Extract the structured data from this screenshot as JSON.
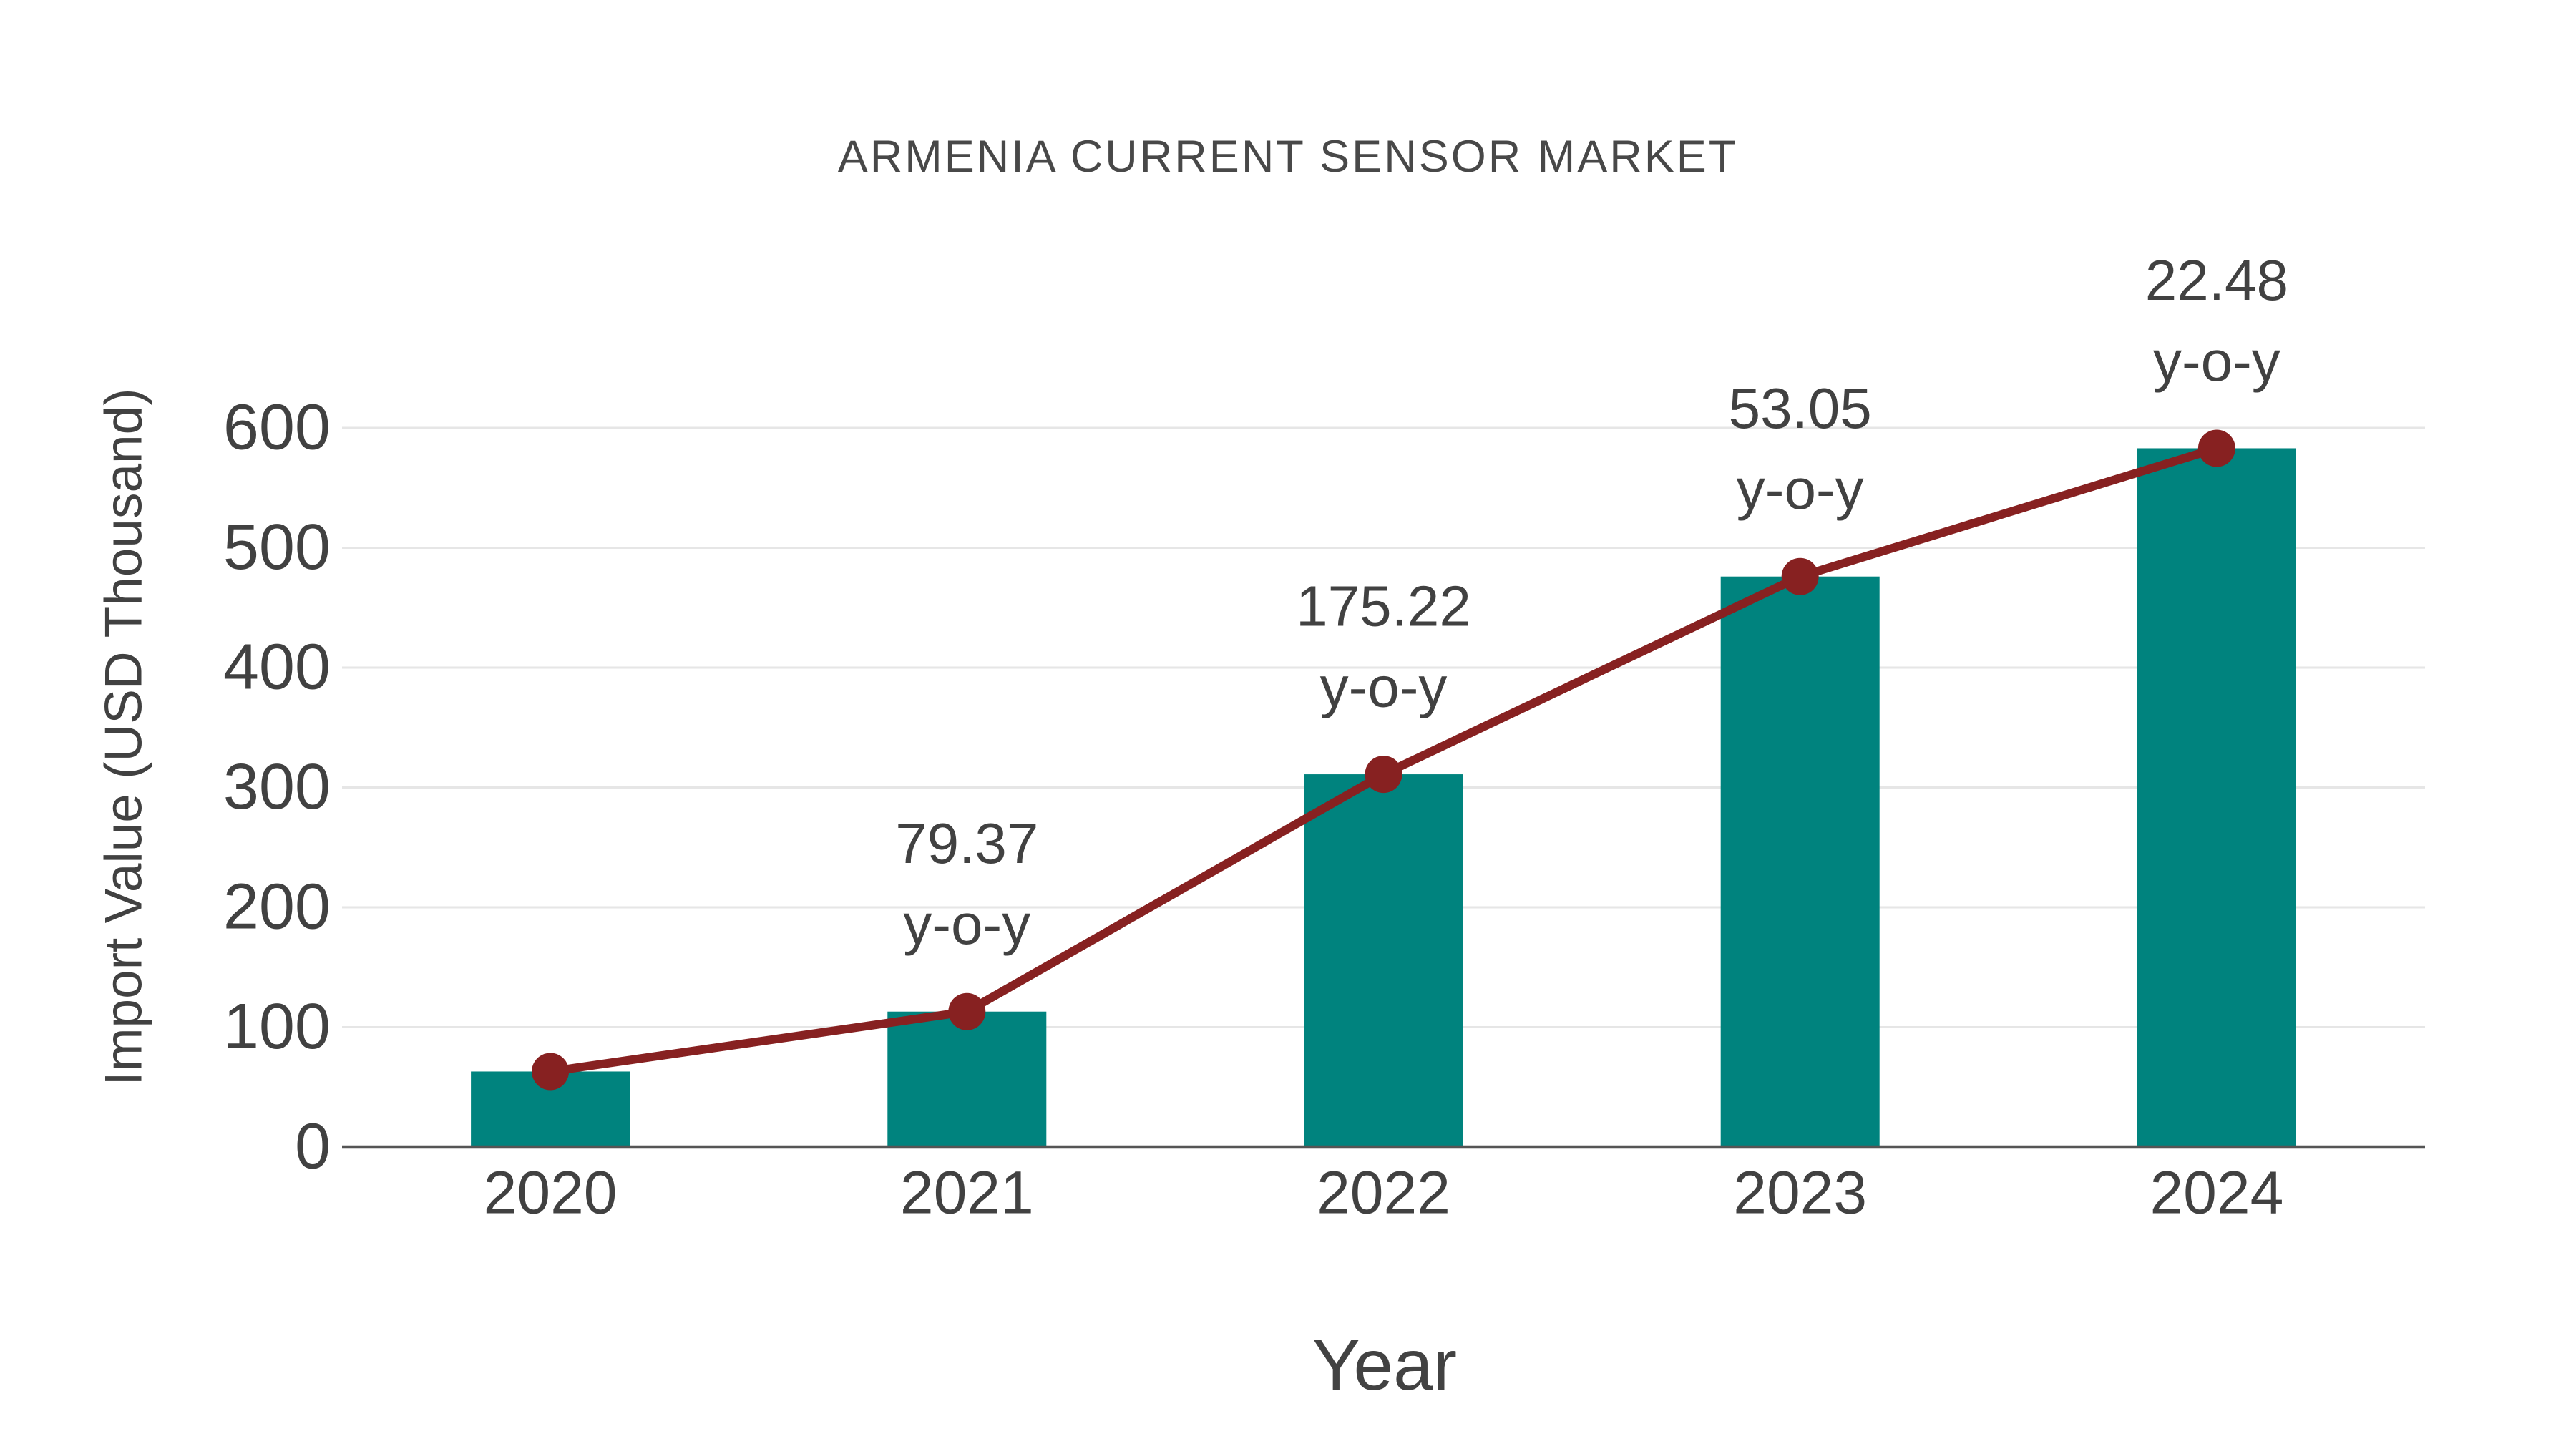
{
  "title": "ARMENIA CURRENT SENSOR MARKET",
  "axes": {
    "x_label": "Year",
    "y_label": "Import Value (USD Thousand)"
  },
  "chart_data": {
    "type": "bar",
    "subtype": "bar-with-line-overlay",
    "title": "ARMENIA CURRENT SENSOR MARKET",
    "xlabel": "Year",
    "ylabel": "Import Value (USD Thousand)",
    "categories": [
      "2020",
      "2021",
      "2022",
      "2023",
      "2024"
    ],
    "series": [
      {
        "name": "Import Value (USD Thousand)",
        "type": "bar",
        "values": [
          63,
          113,
          311,
          476,
          583
        ]
      },
      {
        "name": "Year-over-year trend line",
        "type": "line",
        "values": [
          63,
          113,
          311,
          476,
          583
        ]
      }
    ],
    "annotations": [
      {
        "category": "2021",
        "value_label": "79.37",
        "suffix_label": "y-o-y"
      },
      {
        "category": "2022",
        "value_label": "175.22",
        "suffix_label": "y-o-y"
      },
      {
        "category": "2023",
        "value_label": "53.05",
        "suffix_label": "y-o-y"
      },
      {
        "category": "2024",
        "value_label": "22.48",
        "suffix_label": "y-o-y"
      }
    ],
    "yoy_percent_values": [
      79.37,
      175.22,
      53.05,
      22.48
    ],
    "ylim": [
      0,
      600
    ],
    "yticks": [
      0,
      100,
      200,
      300,
      400,
      500,
      600
    ],
    "grid": "horizontal",
    "legend_position": "none",
    "colors": {
      "bar_fill": "#00837E",
      "line_stroke": "#872121",
      "marker_fill": "#872121",
      "gridline": "#E6E6E6",
      "axis_line": "#555555",
      "tick_text": "#414141",
      "annotation_text": "#414141",
      "background": "#FFFFFF"
    }
  }
}
